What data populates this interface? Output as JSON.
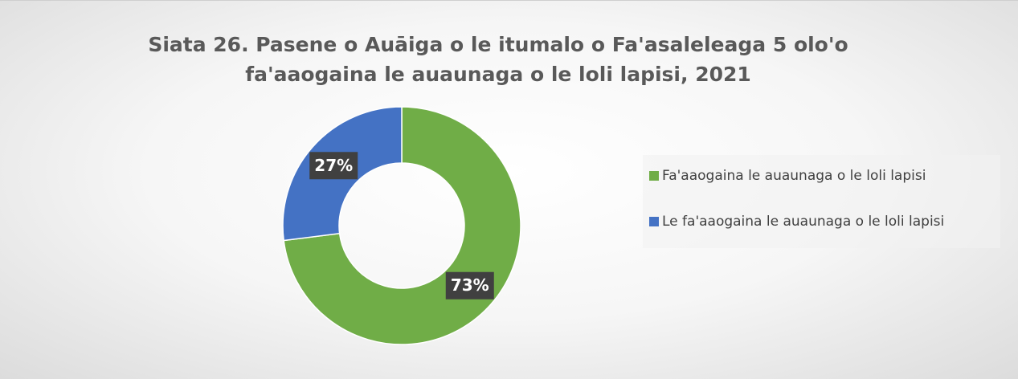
{
  "chart_data": {
    "type": "donut",
    "title": "Siata 26. Pasene o Auāiga o le itumalo o Fa'asaleleaga 5 olo'o fa'aaogaina le auaunaga o le loli lapisi, 2021",
    "categories": [
      "Fa'aaogaina le auaunaga o le loli lapisi",
      "Le fa'aaogaina le auaunaga o le loli lapisi"
    ],
    "values": [
      73,
      27
    ],
    "value_labels": [
      "73%",
      "27%"
    ],
    "colors": [
      "#70ad47",
      "#4472c4"
    ],
    "legend": "right"
  }
}
